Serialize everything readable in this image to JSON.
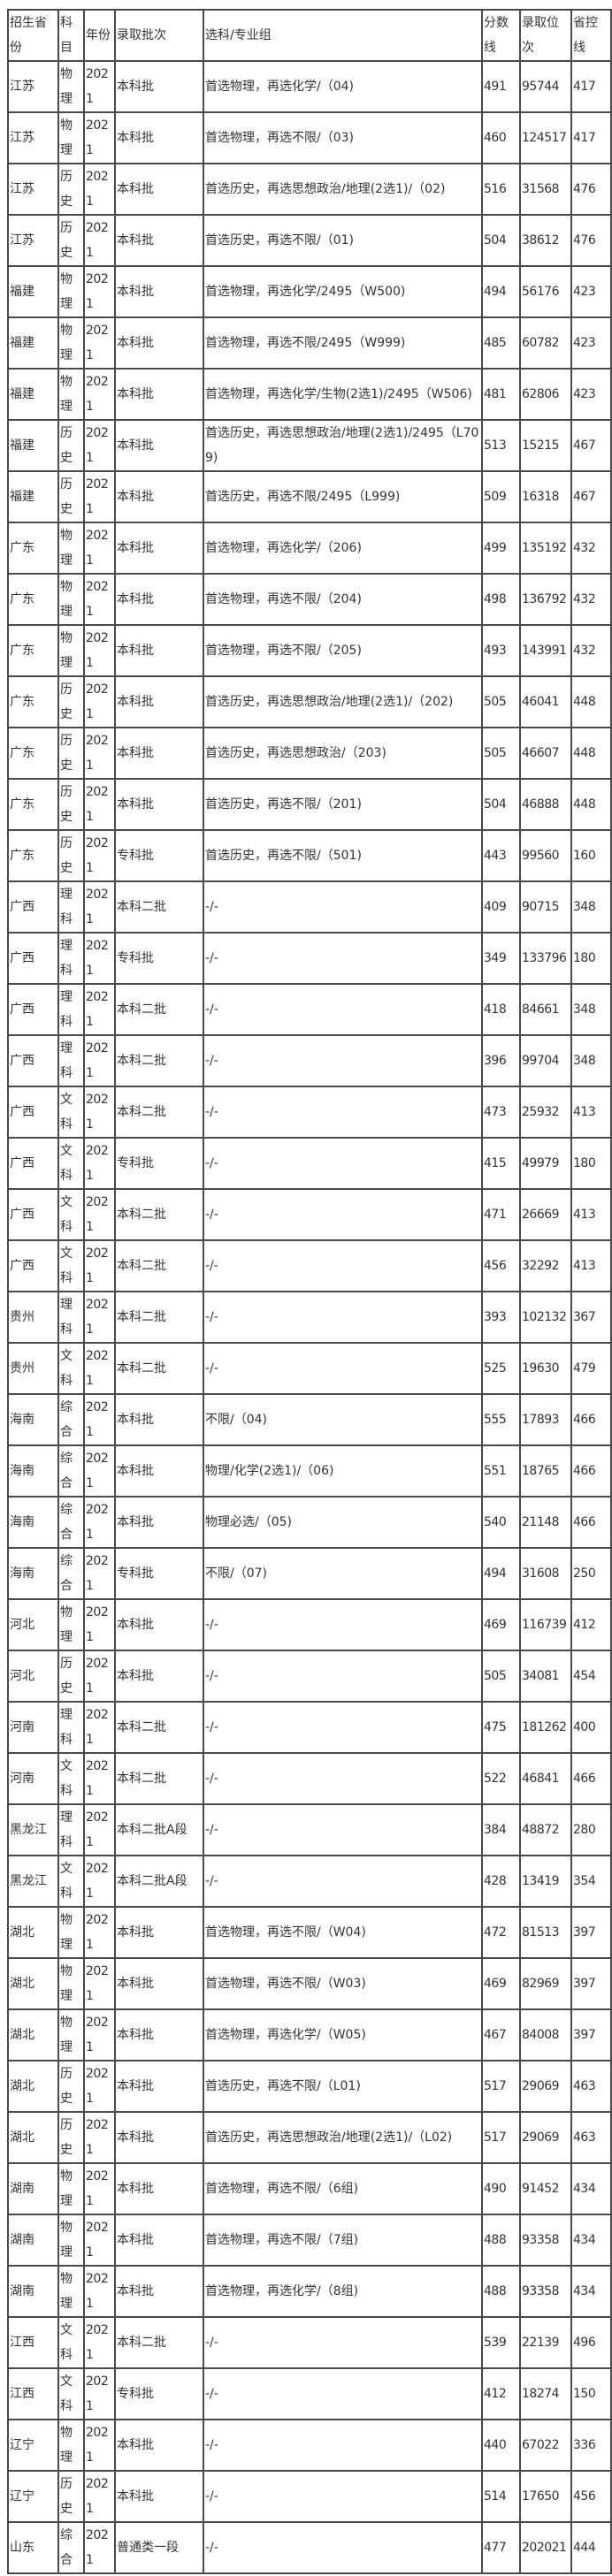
{
  "table": {
    "headers": [
      "招生省份",
      "科目",
      "年份",
      "录取批次",
      "选科/专业组",
      "分数线",
      "录取位次",
      "省控线"
    ],
    "rows": [
      [
        "江苏",
        "物理",
        "2021",
        "本科批",
        "首选物理，再选化学/（04)",
        "491",
        "95744",
        "417"
      ],
      [
        "江苏",
        "物理",
        "2021",
        "本科批",
        "首选物理，再选不限/（03)",
        "460",
        "124517",
        "417"
      ],
      [
        "江苏",
        "历史",
        "2021",
        "本科批",
        "首选历史，再选思想政治/地理(2选1)/（02)",
        "516",
        "31568",
        "476"
      ],
      [
        "江苏",
        "历史",
        "2021",
        "本科批",
        "首选历史，再选不限/（01)",
        "504",
        "38612",
        "476"
      ],
      [
        "福建",
        "物理",
        "2021",
        "本科批",
        "首选物理，再选化学/2495（W500)",
        "494",
        "56176",
        "423"
      ],
      [
        "福建",
        "物理",
        "2021",
        "本科批",
        "首选物理，再选不限/2495（W999)",
        "485",
        "60782",
        "423"
      ],
      [
        "福建",
        "物理",
        "2021",
        "本科批",
        "首选物理，再选化学/生物(2选1)/2495（W506)",
        "481",
        "62806",
        "423"
      ],
      [
        "福建",
        "历史",
        "2021",
        "本科批",
        "首选历史，再选思想政治/地理(2选1)/2495（L709)",
        "513",
        "15215",
        "467"
      ],
      [
        "福建",
        "历史",
        "2021",
        "本科批",
        "首选历史，再选不限/2495（L999)",
        "509",
        "16318",
        "467"
      ],
      [
        "广东",
        "物理",
        "2021",
        "本科批",
        "首选物理，再选化学/（206)",
        "499",
        "135192",
        "432"
      ],
      [
        "广东",
        "物理",
        "2021",
        "本科批",
        "首选物理，再选不限/（204)",
        "498",
        "136792",
        "432"
      ],
      [
        "广东",
        "物理",
        "2021",
        "本科批",
        "首选物理，再选不限/（205)",
        "493",
        "143991",
        "432"
      ],
      [
        "广东",
        "历史",
        "2021",
        "本科批",
        "首选历史，再选思想政治/地理(2选1)/（202)",
        "505",
        "46041",
        "448"
      ],
      [
        "广东",
        "历史",
        "2021",
        "本科批",
        "首选历史，再选思想政治/（203)",
        "505",
        "46607",
        "448"
      ],
      [
        "广东",
        "历史",
        "2021",
        "本科批",
        "首选历史，再选不限/（201)",
        "504",
        "46888",
        "448"
      ],
      [
        "广东",
        "历史",
        "2021",
        "专科批",
        "首选历史，再选不限/（501)",
        "443",
        "99560",
        "160"
      ],
      [
        "广西",
        "理科",
        "2021",
        "本科二批",
        "-/-",
        "409",
        "90715",
        "348"
      ],
      [
        "广西",
        "理科",
        "2021",
        "专科批",
        "-/-",
        "349",
        "133796",
        "180"
      ],
      [
        "广西",
        "理科",
        "2021",
        "本科二批",
        "-/-",
        "418",
        "84661",
        "348"
      ],
      [
        "广西",
        "理科",
        "2021",
        "本科二批",
        "-/-",
        "396",
        "99704",
        "348"
      ],
      [
        "广西",
        "文科",
        "2021",
        "本科二批",
        "-/-",
        "473",
        "25932",
        "413"
      ],
      [
        "广西",
        "文科",
        "2021",
        "专科批",
        "-/-",
        "415",
        "49979",
        "180"
      ],
      [
        "广西",
        "文科",
        "2021",
        "本科二批",
        "-/-",
        "471",
        "26669",
        "413"
      ],
      [
        "广西",
        "文科",
        "2021",
        "本科二批",
        "-/-",
        "456",
        "32292",
        "413"
      ],
      [
        "贵州",
        "理科",
        "2021",
        "本科二批",
        "-/-",
        "393",
        "102132",
        "367"
      ],
      [
        "贵州",
        "文科",
        "2021",
        "本科二批",
        "-/-",
        "525",
        "19630",
        "479"
      ],
      [
        "海南",
        "综合",
        "2021",
        "本科批",
        "不限/（04)",
        "555",
        "17893",
        "466"
      ],
      [
        "海南",
        "综合",
        "2021",
        "本科批",
        "物理/化学(2选1)/（06)",
        "551",
        "18765",
        "466"
      ],
      [
        "海南",
        "综合",
        "2021",
        "本科批",
        "物理必选/（05)",
        "540",
        "21148",
        "466"
      ],
      [
        "海南",
        "综合",
        "2021",
        "专科批",
        "不限/（07)",
        "494",
        "31608",
        "250"
      ],
      [
        "河北",
        "物理",
        "2021",
        "本科批",
        "-/-",
        "469",
        "116739",
        "412"
      ],
      [
        "河北",
        "历史",
        "2021",
        "本科批",
        "-/-",
        "505",
        "34081",
        "454"
      ],
      [
        "河南",
        "理科",
        "2021",
        "本科二批",
        "-/-",
        "475",
        "181262",
        "400"
      ],
      [
        "河南",
        "文科",
        "2021",
        "本科二批",
        "-/-",
        "522",
        "46841",
        "466"
      ],
      [
        "黑龙江",
        "理科",
        "2021",
        "本科二批A段",
        "-/-",
        "384",
        "48872",
        "280"
      ],
      [
        "黑龙江",
        "文科",
        "2021",
        "本科二批A段",
        "-/-",
        "428",
        "13419",
        "354"
      ],
      [
        "湖北",
        "物理",
        "2021",
        "本科批",
        "首选物理，再选不限/（W04)",
        "472",
        "81513",
        "397"
      ],
      [
        "湖北",
        "物理",
        "2021",
        "本科批",
        "首选物理，再选不限/（W03)",
        "469",
        "82969",
        "397"
      ],
      [
        "湖北",
        "物理",
        "2021",
        "本科批",
        "首选物理，再选化学/（W05)",
        "467",
        "84008",
        "397"
      ],
      [
        "湖北",
        "历史",
        "2021",
        "本科批",
        "首选历史，再选不限/（L01)",
        "517",
        "29069",
        "463"
      ],
      [
        "湖北",
        "历史",
        "2021",
        "本科批",
        "首选历史，再选思想政治/地理(2选1)/（L02)",
        "517",
        "29069",
        "463"
      ],
      [
        "湖南",
        "物理",
        "2021",
        "本科批",
        "首选物理，再选不限/（6组)",
        "490",
        "91452",
        "434"
      ],
      [
        "湖南",
        "物理",
        "2021",
        "本科批",
        "首选物理，再选不限/（7组)",
        "488",
        "93358",
        "434"
      ],
      [
        "湖南",
        "物理",
        "2021",
        "本科批",
        "首选物理，再选化学/（8组)",
        "488",
        "93358",
        "434"
      ],
      [
        "江西",
        "文科",
        "2021",
        "本科二批",
        "-/-",
        "539",
        "22139",
        "496"
      ],
      [
        "江西",
        "文科",
        "2021",
        "专科批",
        "-/-",
        "412",
        "18274",
        "150"
      ],
      [
        "辽宁",
        "物理",
        "2021",
        "本科批",
        "-/-",
        "440",
        "67022",
        "336"
      ],
      [
        "辽宁",
        "历史",
        "2021",
        "本科批",
        "-/-",
        "514",
        "17650",
        "456"
      ],
      [
        "山东",
        "综合",
        "2021",
        "普通类一段",
        "-/-",
        "477",
        "202021",
        "444"
      ]
    ]
  }
}
